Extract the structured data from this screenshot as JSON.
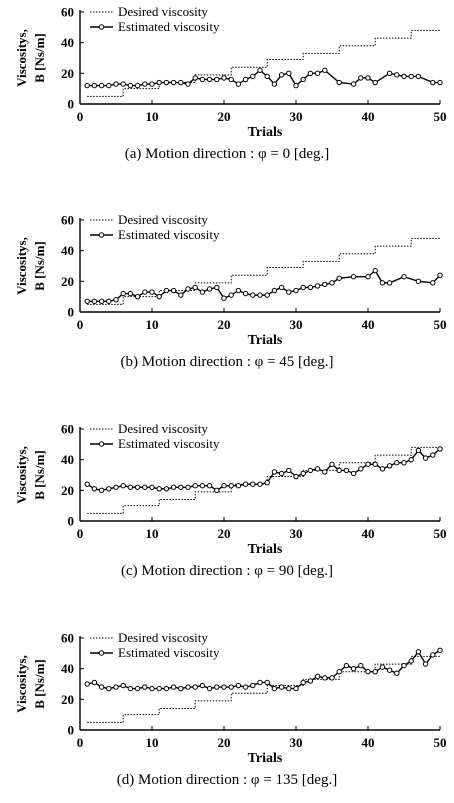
{
  "chart_data": [
    {
      "type": "line",
      "caption": "(a) Motion direction : φ = 0 [deg.]",
      "xlabel": "Trials",
      "ylabel_line1": "Viscositys,",
      "ylabel_line2": "B  [Ns/m]",
      "xlim": [
        0,
        50
      ],
      "ylim": [
        0,
        60
      ],
      "xticks": [
        0,
        10,
        20,
        30,
        40,
        50
      ],
      "yticks": [
        0,
        20,
        40,
        60
      ],
      "grid": false,
      "legend_position": "top-left",
      "series": [
        {
          "name": "Desired viscosity",
          "style": "dotted-step",
          "x": [
            1,
            2,
            3,
            4,
            5,
            6,
            7,
            8,
            9,
            10,
            11,
            12,
            13,
            14,
            15,
            16,
            17,
            18,
            19,
            20,
            21,
            22,
            23,
            24,
            25,
            26,
            27,
            28,
            29,
            30,
            31,
            32,
            33,
            34,
            35,
            36,
            37,
            38,
            39,
            40,
            41,
            42,
            43,
            44,
            45,
            46,
            47,
            48,
            49,
            50
          ],
          "y": [
            5,
            5,
            5,
            5,
            5,
            10,
            10,
            10,
            10,
            10,
            14,
            14,
            14,
            14,
            14,
            19,
            19,
            19,
            19,
            19,
            24,
            24,
            24,
            24,
            24,
            29,
            29,
            29,
            29,
            29,
            33,
            33,
            33,
            33,
            33,
            38,
            38,
            38,
            38,
            38,
            43,
            43,
            43,
            43,
            43,
            48,
            48,
            48,
            48,
            48
          ]
        },
        {
          "name": "Estimated viscosity",
          "style": "solid-marker",
          "x": [
            1,
            2,
            3,
            4,
            5,
            6,
            7,
            8,
            9,
            10,
            11,
            12,
            13,
            14,
            15,
            16,
            17,
            18,
            19,
            20,
            21,
            22,
            23,
            24,
            25,
            26,
            27,
            28,
            29,
            30,
            31,
            32,
            33,
            34,
            36,
            38,
            39,
            40,
            41,
            43,
            44,
            45,
            46,
            47,
            49,
            50
          ],
          "y": [
            12,
            12,
            12,
            12,
            13,
            13,
            12,
            12,
            13,
            13,
            14,
            14,
            14,
            14,
            13,
            17,
            16,
            16,
            16,
            17,
            16,
            13,
            16,
            18,
            22,
            18,
            13,
            19,
            20,
            12,
            16,
            20,
            20,
            22,
            14,
            13,
            17,
            17,
            14,
            20,
            19,
            18,
            18,
            18,
            14,
            14
          ]
        }
      ]
    },
    {
      "type": "line",
      "caption": "(b) Motion direction : φ = 45 [deg.]",
      "xlabel": "Trials",
      "ylabel_line1": "Viscositys,",
      "ylabel_line2": "B  [Ns/m]",
      "xlim": [
        0,
        50
      ],
      "ylim": [
        0,
        60
      ],
      "xticks": [
        0,
        10,
        20,
        30,
        40,
        50
      ],
      "yticks": [
        0,
        20,
        40,
        60
      ],
      "grid": false,
      "legend_position": "top-left",
      "series": [
        {
          "name": "Desired viscosity",
          "style": "dotted-step",
          "x": [
            1,
            2,
            3,
            4,
            5,
            6,
            7,
            8,
            9,
            10,
            11,
            12,
            13,
            14,
            15,
            16,
            17,
            18,
            19,
            20,
            21,
            22,
            23,
            24,
            25,
            26,
            27,
            28,
            29,
            30,
            31,
            32,
            33,
            34,
            35,
            36,
            37,
            38,
            39,
            40,
            41,
            42,
            43,
            44,
            45,
            46,
            47,
            48,
            49,
            50
          ],
          "y": [
            5,
            5,
            5,
            5,
            5,
            10,
            10,
            10,
            10,
            10,
            14,
            14,
            14,
            14,
            14,
            19,
            19,
            19,
            19,
            19,
            24,
            24,
            24,
            24,
            24,
            29,
            29,
            29,
            29,
            29,
            33,
            33,
            33,
            33,
            33,
            38,
            38,
            38,
            38,
            38,
            43,
            43,
            43,
            43,
            43,
            48,
            48,
            48,
            48,
            48
          ]
        },
        {
          "name": "Estimated viscosity",
          "style": "solid-marker",
          "x": [
            1,
            2,
            3,
            4,
            5,
            6,
            7,
            8,
            9,
            10,
            11,
            12,
            13,
            14,
            15,
            16,
            17,
            18,
            19,
            20,
            21,
            22,
            23,
            24,
            25,
            26,
            27,
            28,
            29,
            30,
            31,
            32,
            33,
            34,
            35,
            36,
            38,
            40,
            41,
            42,
            43,
            45,
            47,
            49,
            50
          ],
          "y": [
            7,
            7,
            7,
            7,
            8,
            12,
            12,
            10,
            13,
            13,
            10,
            14,
            14,
            11,
            15,
            16,
            13,
            15,
            16,
            9,
            11,
            14,
            12,
            11,
            11,
            11,
            14,
            16,
            13,
            14,
            16,
            16,
            17,
            18,
            19,
            22,
            23,
            23,
            27,
            19,
            19,
            23,
            20,
            19,
            24
          ]
        }
      ]
    },
    {
      "type": "line",
      "caption": "(c) Motion direction : φ = 90 [deg.]",
      "xlabel": "Trials",
      "ylabel_line1": "Viscositys,",
      "ylabel_line2": "B  [Ns/m]",
      "xlim": [
        0,
        50
      ],
      "ylim": [
        0,
        60
      ],
      "xticks": [
        0,
        10,
        20,
        30,
        40,
        50
      ],
      "yticks": [
        0,
        20,
        40,
        60
      ],
      "grid": false,
      "legend_position": "top-left",
      "series": [
        {
          "name": "Desired viscosity",
          "style": "dotted-step",
          "x": [
            1,
            2,
            3,
            4,
            5,
            6,
            7,
            8,
            9,
            10,
            11,
            12,
            13,
            14,
            15,
            16,
            17,
            18,
            19,
            20,
            21,
            22,
            23,
            24,
            25,
            26,
            27,
            28,
            29,
            30,
            31,
            32,
            33,
            34,
            35,
            36,
            37,
            38,
            39,
            40,
            41,
            42,
            43,
            44,
            45,
            46,
            47,
            48,
            49,
            50
          ],
          "y": [
            5,
            5,
            5,
            5,
            5,
            10,
            10,
            10,
            10,
            10,
            14,
            14,
            14,
            14,
            14,
            19,
            19,
            19,
            19,
            19,
            24,
            24,
            24,
            24,
            24,
            29,
            29,
            29,
            29,
            29,
            33,
            33,
            33,
            33,
            33,
            38,
            38,
            38,
            38,
            38,
            43,
            43,
            43,
            43,
            43,
            48,
            48,
            48,
            48,
            48
          ]
        },
        {
          "name": "Estimated viscosity",
          "style": "solid-marker",
          "x": [
            1,
            2,
            3,
            4,
            5,
            6,
            7,
            8,
            9,
            10,
            11,
            12,
            13,
            14,
            15,
            16,
            17,
            18,
            19,
            20,
            21,
            22,
            23,
            24,
            25,
            26,
            27,
            28,
            29,
            30,
            31,
            32,
            33,
            34,
            35,
            36,
            37,
            38,
            39,
            40,
            41,
            42,
            43,
            44,
            45,
            46,
            47,
            48,
            49,
            50
          ],
          "y": [
            24,
            21,
            20,
            21,
            22,
            23,
            22,
            22,
            22,
            22,
            21,
            21,
            22,
            22,
            22,
            23,
            23,
            23,
            20,
            23,
            23,
            23,
            24,
            24,
            24,
            25,
            32,
            31,
            33,
            29,
            31,
            33,
            34,
            32,
            37,
            33,
            33,
            31,
            34,
            37,
            37,
            34,
            36,
            38,
            38,
            40,
            46,
            41,
            43,
            47
          ]
        }
      ]
    },
    {
      "type": "line",
      "caption": "(d) Motion direction : φ = 135 [deg.]",
      "xlabel": "Trials",
      "ylabel_line1": "Viscositys,",
      "ylabel_line2": "B  [Ns/m]",
      "xlim": [
        0,
        50
      ],
      "ylim": [
        0,
        60
      ],
      "xticks": [
        0,
        10,
        20,
        30,
        40,
        50
      ],
      "yticks": [
        0,
        20,
        40,
        60
      ],
      "grid": false,
      "legend_position": "top-left",
      "series": [
        {
          "name": "Desired viscosity",
          "style": "dotted-step",
          "x": [
            1,
            2,
            3,
            4,
            5,
            6,
            7,
            8,
            9,
            10,
            11,
            12,
            13,
            14,
            15,
            16,
            17,
            18,
            19,
            20,
            21,
            22,
            23,
            24,
            25,
            26,
            27,
            28,
            29,
            30,
            31,
            32,
            33,
            34,
            35,
            36,
            37,
            38,
            39,
            40,
            41,
            42,
            43,
            44,
            45,
            46,
            47,
            48,
            49,
            50
          ],
          "y": [
            5,
            5,
            5,
            5,
            5,
            10,
            10,
            10,
            10,
            10,
            14,
            14,
            14,
            14,
            14,
            19,
            19,
            19,
            19,
            19,
            24,
            24,
            24,
            24,
            24,
            29,
            29,
            29,
            29,
            29,
            33,
            33,
            33,
            33,
            33,
            38,
            38,
            38,
            38,
            38,
            43,
            43,
            43,
            43,
            43,
            48,
            48,
            48,
            48,
            48
          ]
        },
        {
          "name": "Estimated viscosity",
          "style": "solid-marker",
          "x": [
            1,
            2,
            3,
            4,
            5,
            6,
            7,
            8,
            9,
            10,
            11,
            12,
            13,
            14,
            15,
            16,
            17,
            18,
            19,
            20,
            21,
            22,
            23,
            24,
            25,
            26,
            27,
            28,
            29,
            30,
            31,
            32,
            33,
            34,
            35,
            36,
            37,
            38,
            39,
            40,
            41,
            42,
            43,
            44,
            45,
            46,
            47,
            48,
            49,
            50
          ],
          "y": [
            30,
            31,
            28,
            27,
            28,
            29,
            27,
            27,
            28,
            27,
            27,
            27,
            28,
            27,
            28,
            28,
            29,
            27,
            28,
            28,
            28,
            29,
            28,
            29,
            31,
            31,
            27,
            28,
            27,
            27,
            31,
            32,
            35,
            34,
            34,
            38,
            42,
            40,
            42,
            38,
            38,
            41,
            39,
            37,
            42,
            45,
            51,
            43,
            49,
            52
          ]
        }
      ]
    }
  ]
}
